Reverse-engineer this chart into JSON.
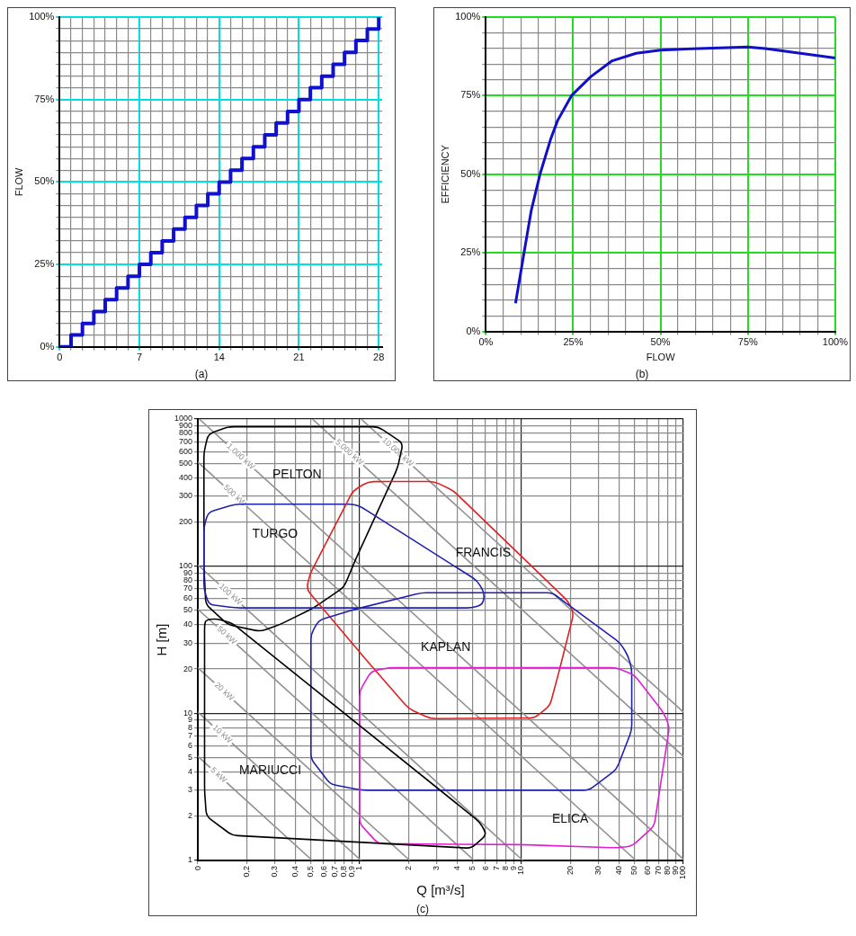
{
  "chart_data": [
    {
      "type": "step",
      "ylabel": "FLOW",
      "annotations": [
        "(a)"
      ],
      "grid": true,
      "x": [
        0,
        1,
        2,
        3,
        4,
        5,
        6,
        7,
        8,
        9,
        10,
        11,
        12,
        13,
        14,
        15,
        16,
        17,
        18,
        19,
        20,
        21,
        22,
        23,
        24,
        25,
        26,
        27,
        28
      ],
      "series": [
        {
          "color": "#1010d0",
          "values": [
            0,
            3.6,
            7.1,
            10.7,
            14.3,
            17.9,
            21.4,
            25,
            28.6,
            32.1,
            35.7,
            39.3,
            42.9,
            46.4,
            50,
            53.6,
            57.1,
            60.7,
            64.3,
            67.9,
            71.4,
            75,
            78.6,
            82.1,
            85.7,
            89.3,
            92.9,
            96.4,
            100
          ]
        }
      ],
      "xlim": [
        0,
        28.3
      ],
      "ylim": [
        0,
        100
      ],
      "xticks": [
        0,
        {
          "value": 1,
          "label": null
        },
        {
          "value": 2,
          "label": null
        },
        {
          "value": 3,
          "label": null
        },
        {
          "value": 4,
          "label": null
        },
        {
          "value": 5,
          "label": null
        },
        {
          "value": 6,
          "label": null
        },
        7,
        {
          "value": 8,
          "label": null
        },
        {
          "value": 9,
          "label": null
        },
        {
          "value": 10,
          "label": null
        },
        {
          "value": 11,
          "label": null
        },
        {
          "value": 12,
          "label": null
        },
        {
          "value": 13,
          "label": null
        },
        14,
        {
          "value": 15,
          "label": null
        },
        {
          "value": 16,
          "label": null
        },
        {
          "value": 17,
          "label": null
        },
        {
          "value": 18,
          "label": null
        },
        {
          "value": 19,
          "label": null
        },
        {
          "value": 20,
          "label": null
        },
        21,
        {
          "value": 22,
          "label": null
        },
        {
          "value": 23,
          "label": null
        },
        {
          "value": 24,
          "label": null
        },
        {
          "value": 25,
          "label": null
        },
        {
          "value": 26,
          "label": null
        },
        {
          "value": 27,
          "label": null
        },
        28
      ],
      "yticks": [
        {
          "value": 0,
          "label": "0%"
        },
        {
          "value": 3.57,
          "label": null
        },
        {
          "value": 7.14,
          "label": null
        },
        {
          "value": 10.71,
          "label": null
        },
        {
          "value": 14.29,
          "label": null
        },
        {
          "value": 17.86,
          "label": null
        },
        {
          "value": 21.43,
          "label": null
        },
        {
          "value": 25,
          "label": "25%"
        },
        {
          "value": 28.57,
          "label": null
        },
        {
          "value": 32.14,
          "label": null
        },
        {
          "value": 35.71,
          "label": null
        },
        {
          "value": 39.29,
          "label": null
        },
        {
          "value": 42.86,
          "label": null
        },
        {
          "value": 46.43,
          "label": null
        },
        {
          "value": 50,
          "label": "50%"
        },
        {
          "value": 53.57,
          "label": null
        },
        {
          "value": 57.14,
          "label": null
        },
        {
          "value": 60.71,
          "label": null
        },
        {
          "value": 64.29,
          "label": null
        },
        {
          "value": 67.86,
          "label": null
        },
        {
          "value": 71.43,
          "label": null
        },
        {
          "value": 75,
          "label": "75%"
        },
        {
          "value": 78.57,
          "label": null
        },
        {
          "value": 82.14,
          "label": null
        },
        {
          "value": 85.71,
          "label": null
        },
        {
          "value": 89.29,
          "label": null
        },
        {
          "value": 92.86,
          "label": null
        },
        {
          "value": 96.43,
          "label": null
        },
        {
          "value": 100,
          "label": "100%"
        }
      ]
    },
    {
      "type": "line",
      "xlabel": "FLOW",
      "ylabel": "EFFICIENCY",
      "annotations": [
        "(b)"
      ],
      "grid": true,
      "x": [
        8.5,
        11,
        13,
        15.5,
        18.5,
        20.5,
        24.5,
        30,
        36,
        43,
        50,
        61,
        75,
        80,
        90,
        100
      ],
      "series": [
        {
          "color": "#1010c8",
          "values": [
            9,
            25.5,
            38.5,
            50,
            61,
            67,
            75,
            81,
            86,
            88.5,
            89.5,
            90,
            90.5,
            90,
            88.5,
            87
          ]
        }
      ],
      "xlim": [
        0,
        100
      ],
      "ylim": [
        0,
        100
      ],
      "xticks": [
        {
          "value": 0,
          "label": "0%"
        },
        {
          "value": 5,
          "label": null
        },
        {
          "value": 10,
          "label": null
        },
        {
          "value": 15,
          "label": null
        },
        {
          "value": 20,
          "label": null
        },
        {
          "value": 25,
          "label": "25%"
        },
        {
          "value": 30,
          "label": null
        },
        {
          "value": 35,
          "label": null
        },
        {
          "value": 40,
          "label": null
        },
        {
          "value": 45,
          "label": null
        },
        {
          "value": 50,
          "label": "50%"
        },
        {
          "value": 55,
          "label": null
        },
        {
          "value": 60,
          "label": null
        },
        {
          "value": 65,
          "label": null
        },
        {
          "value": 70,
          "label": null
        },
        {
          "value": 75,
          "label": "75%"
        },
        {
          "value": 80,
          "label": null
        },
        {
          "value": 85,
          "label": null
        },
        {
          "value": 90,
          "label": null
        },
        {
          "value": 95,
          "label": null
        },
        {
          "value": 100,
          "label": "100%"
        }
      ],
      "yticks": [
        {
          "value": 0,
          "label": "0%"
        },
        {
          "value": 5,
          "label": null
        },
        {
          "value": 10,
          "label": null
        },
        {
          "value": 15,
          "label": null
        },
        {
          "value": 20,
          "label": null
        },
        {
          "value": 25,
          "label": "25%"
        },
        {
          "value": 30,
          "label": null
        },
        {
          "value": 35,
          "label": null
        },
        {
          "value": 40,
          "label": null
        },
        {
          "value": 45,
          "label": null
        },
        {
          "value": 50,
          "label": "50%"
        },
        {
          "value": 55,
          "label": null
        },
        {
          "value": 60,
          "label": null
        },
        {
          "value": 65,
          "label": null
        },
        {
          "value": 70,
          "label": null
        },
        {
          "value": 75,
          "label": "75%"
        },
        {
          "value": 80,
          "label": null
        },
        {
          "value": 85,
          "label": null
        },
        {
          "value": 90,
          "label": null
        },
        {
          "value": 95,
          "label": null
        },
        {
          "value": 100,
          "label": "100%"
        }
      ]
    },
    {
      "type": "line",
      "xlabel": "Q [m³/s]",
      "ylabel": "H [m]",
      "annotations": [
        "(c)",
        "PELTON",
        "TURGO",
        "FRANCIS",
        "KAPLAN",
        "ELICA",
        "MARIUCCI"
      ],
      "grid": true,
      "log": "xy",
      "xlim": [
        0.1,
        100
      ],
      "ylim": [
        1,
        1000
      ],
      "xticks": [
        {
          "value": 0.1,
          "label": "0"
        },
        {
          "value": 0.2,
          "label": "0,2"
        },
        {
          "value": 0.3,
          "label": "0,3"
        },
        {
          "value": 0.4,
          "label": "0,4"
        },
        {
          "value": 0.5,
          "label": "0,5"
        },
        {
          "value": 0.6,
          "label": "0,6"
        },
        {
          "value": 0.7,
          "label": "0,7"
        },
        {
          "value": 0.8,
          "label": "0,8"
        },
        {
          "value": 0.9,
          "label": "0,9"
        },
        1,
        2,
        3,
        4,
        5,
        6,
        7,
        8,
        9,
        10,
        20,
        30,
        40,
        50,
        60,
        70,
        80,
        90,
        100
      ],
      "yticks": [
        1,
        2,
        3,
        4,
        5,
        6,
        7,
        8,
        9,
        10,
        20,
        30,
        40,
        50,
        60,
        70,
        80,
        90,
        100,
        200,
        300,
        400,
        500,
        600,
        700,
        800,
        900,
        1000
      ],
      "series": [
        {
          "name": "5 kW",
          "color": "#909090",
          "x": [
            0.1,
            0.51
          ],
          "values": [
            5.1,
            1
          ]
        },
        {
          "name": "10 kW",
          "color": "#909090",
          "x": [
            0.1,
            1.02
          ],
          "values": [
            10.2,
            1
          ]
        },
        {
          "name": "20 kW",
          "color": "#909090",
          "x": [
            0.1,
            2.04
          ],
          "values": [
            20.4,
            1
          ]
        },
        {
          "name": "50 kW",
          "color": "#909090",
          "x": [
            0.1,
            5.1
          ],
          "values": [
            51,
            1
          ]
        },
        {
          "name": "100 kW",
          "color": "#909090",
          "x": [
            0.1,
            10.2
          ],
          "values": [
            102,
            1
          ]
        },
        {
          "name": "500 kW",
          "color": "#909090",
          "x": [
            0.1,
            51
          ],
          "values": [
            510,
            1
          ]
        },
        {
          "name": "1.000 kW",
          "color": "#909090",
          "x": [
            0.102,
            100
          ],
          "values": [
            1000,
            1.02
          ]
        },
        {
          "name": "5.000 kW",
          "color": "#909090",
          "x": [
            0.51,
            100
          ],
          "values": [
            1000,
            5.1
          ]
        },
        {
          "name": "10.000 kW",
          "color": "#909090",
          "x": [
            1.02,
            100
          ],
          "values": [
            1000,
            10.2
          ]
        }
      ]
    }
  ]
}
